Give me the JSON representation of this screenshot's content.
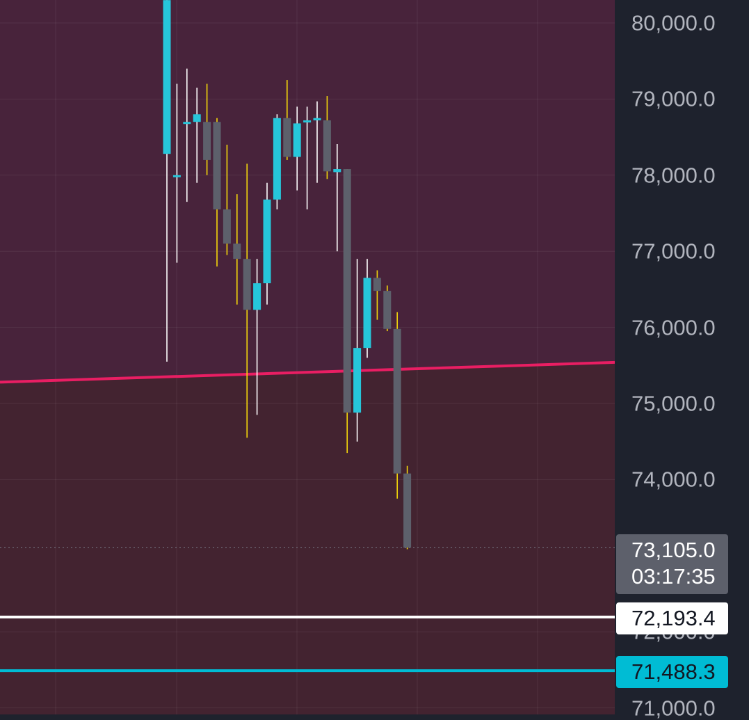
{
  "chart_data": {
    "type": "candlestick",
    "yaxis": {
      "min": 70950,
      "max": 80300,
      "ticks": [
        "80,000.0",
        "79,000.0",
        "78,000.0",
        "77,000.0",
        "76,000.0",
        "75,000.0",
        "74,000.0",
        "72,000.0",
        "71,000.0"
      ],
      "tick_values": [
        80000,
        79000,
        78000,
        77000,
        76000,
        75000,
        74000,
        72000,
        71000
      ]
    },
    "grid": true,
    "colors": {
      "up": "#26c6da",
      "down": "#5d606b",
      "wick_up": "#ffffff",
      "wick_down": "#f5d90a",
      "zone_upper": "#48233b",
      "zone_lower": "#432330",
      "trendline": "#e91e63",
      "level_white": "#ffffff",
      "level_cyan": "#00bcd4",
      "last_price_line": "#787b86"
    },
    "candles": [
      {
        "o": 78280,
        "h": 80300,
        "l": 75550,
        "c": 80300
      },
      {
        "o": 78000,
        "h": 79200,
        "l": 76850,
        "c": 78000
      },
      {
        "o": 78700,
        "h": 79400,
        "l": 77650,
        "c": 78700
      },
      {
        "o": 78700,
        "h": 79150,
        "l": 77900,
        "c": 78800
      },
      {
        "o": 78700,
        "h": 79200,
        "l": 78000,
        "c": 78200
      },
      {
        "o": 78700,
        "h": 78750,
        "l": 76800,
        "c": 77550
      },
      {
        "o": 77550,
        "h": 78400,
        "l": 76950,
        "c": 77100
      },
      {
        "o": 77100,
        "h": 77750,
        "l": 76300,
        "c": 76900
      },
      {
        "o": 76900,
        "h": 78150,
        "l": 74550,
        "c": 76230
      },
      {
        "o": 76230,
        "h": 76900,
        "l": 74850,
        "c": 76580
      },
      {
        "o": 76580,
        "h": 77900,
        "l": 76300,
        "c": 77680
      },
      {
        "o": 77680,
        "h": 78800,
        "l": 77550,
        "c": 78750
      },
      {
        "o": 78750,
        "h": 79250,
        "l": 78200,
        "c": 78240
      },
      {
        "o": 78240,
        "h": 78900,
        "l": 77800,
        "c": 78680
      },
      {
        "o": 78700,
        "h": 78900,
        "l": 77550,
        "c": 78720
      },
      {
        "o": 78720,
        "h": 78970,
        "l": 77900,
        "c": 78750
      },
      {
        "o": 78720,
        "h": 79040,
        "l": 77950,
        "c": 78050
      },
      {
        "o": 78040,
        "h": 78410,
        "l": 77000,
        "c": 78080
      },
      {
        "o": 78080,
        "h": 78080,
        "l": 74350,
        "c": 74880
      },
      {
        "o": 74880,
        "h": 76900,
        "l": 74500,
        "c": 75730
      },
      {
        "o": 75730,
        "h": 76900,
        "l": 75600,
        "c": 76650
      },
      {
        "o": 76650,
        "h": 76750,
        "l": 76100,
        "c": 76480
      },
      {
        "o": 76480,
        "h": 76550,
        "l": 75950,
        "c": 75980
      },
      {
        "o": 75980,
        "h": 76200,
        "l": 73750,
        "c": 74080
      },
      {
        "o": 74080,
        "h": 74180,
        "l": 73085,
        "c": 73105
      }
    ],
    "trendline": {
      "from": 75280,
      "to": 75540
    },
    "levels": [
      {
        "value": 72193.4,
        "label": "72,193.4",
        "color": "#ffffff"
      },
      {
        "value": 71488.3,
        "label": "71,488.3",
        "color": "#00bcd4"
      }
    ],
    "last_price": {
      "value": 73105.0,
      "label": "73,105.0",
      "countdown": "03:17:35"
    }
  }
}
